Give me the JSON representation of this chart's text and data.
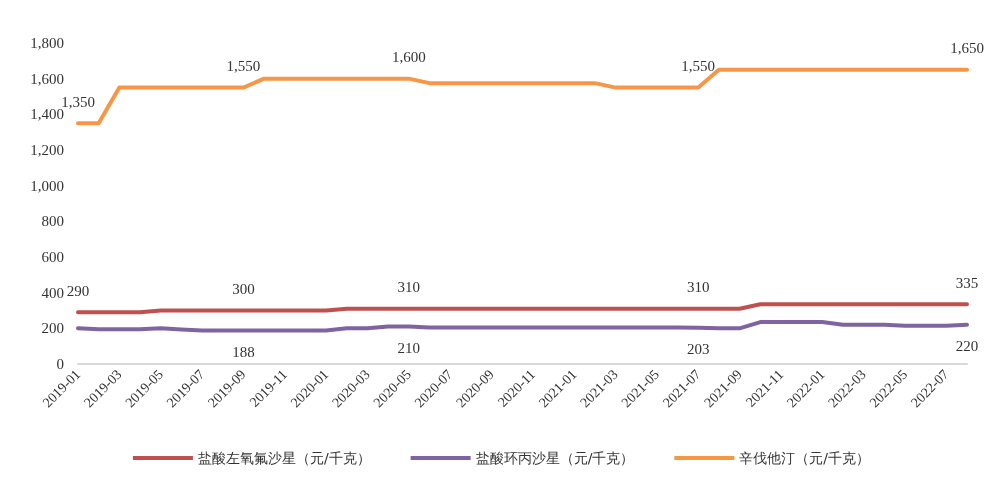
{
  "chart_data": {
    "type": "line",
    "categories": [
      "2019-01",
      null,
      "2019-03",
      null,
      "2019-05",
      null,
      "2019-07",
      null,
      "2019-09",
      null,
      "2019-11",
      null,
      "2020-01",
      null,
      "2020-03",
      null,
      "2020-05",
      null,
      "2020-07",
      null,
      "2020-09",
      null,
      "2020-11",
      null,
      "2021-01",
      null,
      "2021-03",
      null,
      "2021-05",
      null,
      "2021-07",
      null,
      "2021-09",
      null,
      "2021-11",
      null,
      "2022-01",
      null,
      "2022-03",
      null,
      "2022-05",
      null,
      "2022-07",
      null
    ],
    "ylim": [
      0,
      1800
    ],
    "yticks": [
      0,
      200,
      400,
      600,
      800,
      {
        "value": 1000,
        "label": "1,000"
      },
      {
        "value": 1200,
        "label": "1,200"
      },
      {
        "value": 1400,
        "label": "1,400"
      },
      {
        "value": 1600,
        "label": "1,600"
      },
      {
        "value": 1800,
        "label": "1,800"
      }
    ],
    "grid": false,
    "legend": "bottom",
    "line_style": "solid",
    "marker": "none",
    "series": [
      {
        "name": "盐酸左氧氟沙星（元/千克）",
        "color": "#c0504d",
        "values": [
          290,
          290,
          290,
          290,
          300,
          300,
          300,
          300,
          300,
          300,
          300,
          300,
          300,
          310,
          310,
          310,
          310,
          310,
          310,
          310,
          310,
          310,
          310,
          310,
          310,
          310,
          310,
          310,
          310,
          310,
          310,
          310,
          310,
          335,
          335,
          335,
          335,
          335,
          335,
          335,
          335,
          335,
          335,
          335
        ],
        "value_labels": [
          "290",
          null,
          null,
          null,
          null,
          null,
          null,
          null,
          "300",
          null,
          null,
          null,
          null,
          null,
          null,
          null,
          "310",
          null,
          null,
          null,
          null,
          null,
          null,
          null,
          null,
          null,
          null,
          null,
          null,
          null,
          "310",
          null,
          null,
          null,
          null,
          null,
          null,
          null,
          null,
          null,
          null,
          null,
          null,
          "335"
        ]
      },
      {
        "name": "盐酸环丙沙星（元/千克）",
        "color": "#8064a2",
        "values": [
          200,
          195,
          195,
          195,
          200,
          193,
          188,
          188,
          188,
          188,
          188,
          188,
          188,
          200,
          200,
          210,
          210,
          205,
          205,
          205,
          205,
          205,
          205,
          205,
          205,
          205,
          205,
          205,
          205,
          205,
          203,
          200,
          200,
          235,
          235,
          235,
          235,
          220,
          220,
          220,
          215,
          215,
          215,
          220
        ],
        "value_labels": [
          null,
          null,
          null,
          null,
          null,
          null,
          null,
          null,
          "188",
          null,
          null,
          null,
          null,
          null,
          null,
          null,
          "210",
          null,
          null,
          null,
          null,
          null,
          null,
          null,
          null,
          null,
          null,
          null,
          null,
          null,
          "203",
          null,
          null,
          null,
          null,
          null,
          null,
          null,
          null,
          null,
          null,
          null,
          null,
          "220"
        ]
      },
      {
        "name": "辛伐他汀（元/千克）",
        "color": "#f79646",
        "values": [
          1350,
          1350,
          1550,
          1550,
          1550,
          1550,
          1550,
          1550,
          1550,
          1600,
          1600,
          1600,
          1600,
          1600,
          1600,
          1600,
          1600,
          1575,
          1575,
          1575,
          1575,
          1575,
          1575,
          1575,
          1575,
          1575,
          1550,
          1550,
          1550,
          1550,
          1550,
          1650,
          1650,
          1650,
          1650,
          1650,
          1650,
          1650,
          1650,
          1650,
          1650,
          1650,
          1650,
          1650
        ],
        "value_labels": [
          "1,350",
          null,
          null,
          null,
          null,
          null,
          null,
          null,
          "1,550",
          null,
          null,
          null,
          null,
          null,
          null,
          null,
          "1,600",
          null,
          null,
          null,
          null,
          null,
          null,
          null,
          null,
          null,
          null,
          null,
          null,
          null,
          "1,550",
          null,
          null,
          null,
          null,
          null,
          null,
          null,
          null,
          null,
          null,
          null,
          null,
          "1,650"
        ]
      }
    ]
  }
}
